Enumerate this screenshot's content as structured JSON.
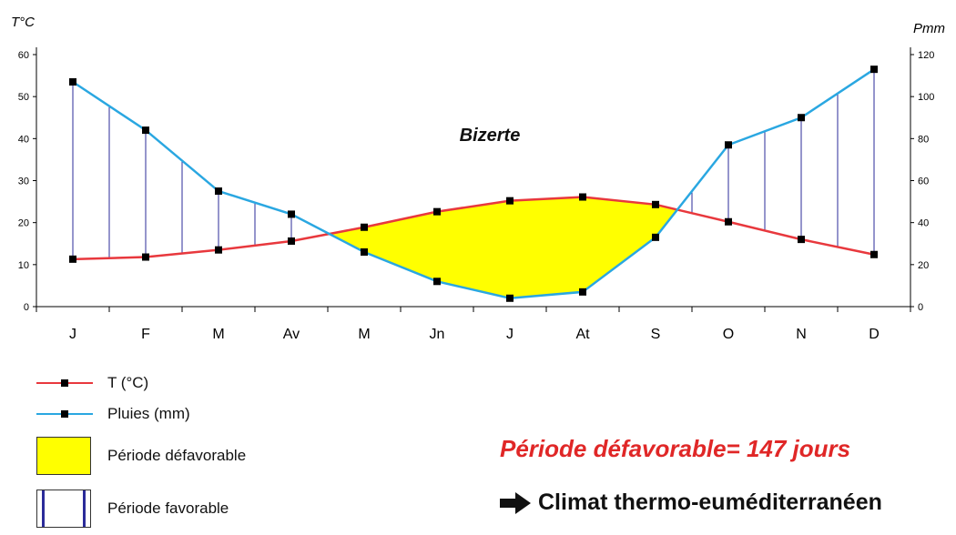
{
  "chart_data": {
    "type": "line",
    "title": "Bizerte",
    "categories": [
      "J",
      "F",
      "M",
      "Av",
      "M",
      "Jn",
      "J",
      "At",
      "S",
      "O",
      "N",
      "D"
    ],
    "left_axis": {
      "label": "T°C",
      "range": [
        0,
        60
      ],
      "ticks": [
        0,
        10,
        20,
        30,
        40,
        50,
        60
      ]
    },
    "right_axis": {
      "label": "Pmm",
      "range": [
        0,
        120
      ],
      "ticks": [
        0,
        20,
        40,
        60,
        80,
        100,
        120
      ]
    },
    "series": [
      {
        "name": "T (°C)",
        "axis": "left",
        "color": "#e8383d",
        "values": [
          11.3,
          11.8,
          13.5,
          15.6,
          18.9,
          22.6,
          25.2,
          26.1,
          24.3,
          20.2,
          16.0,
          12.4
        ]
      },
      {
        "name": "Pluies (mm)",
        "axis": "right",
        "color": "#2aa7e1",
        "values": [
          107,
          84,
          55,
          44,
          26,
          12,
          4,
          7,
          33,
          77,
          90,
          113
        ]
      }
    ],
    "shading": {
      "unfavorable_color": "#ffff00",
      "favorable_hatch_color": "#2b2b9a"
    },
    "grid": false
  },
  "legend": {
    "temp_label": "T (°C)",
    "rain_label": "Pluies (mm)",
    "unfav_label": "Période défavorable",
    "fav_label": "Période favorable"
  },
  "annotations": {
    "period": "Période défavorable= 147 jours",
    "climate": "Climat thermo-euméditerranéen"
  }
}
